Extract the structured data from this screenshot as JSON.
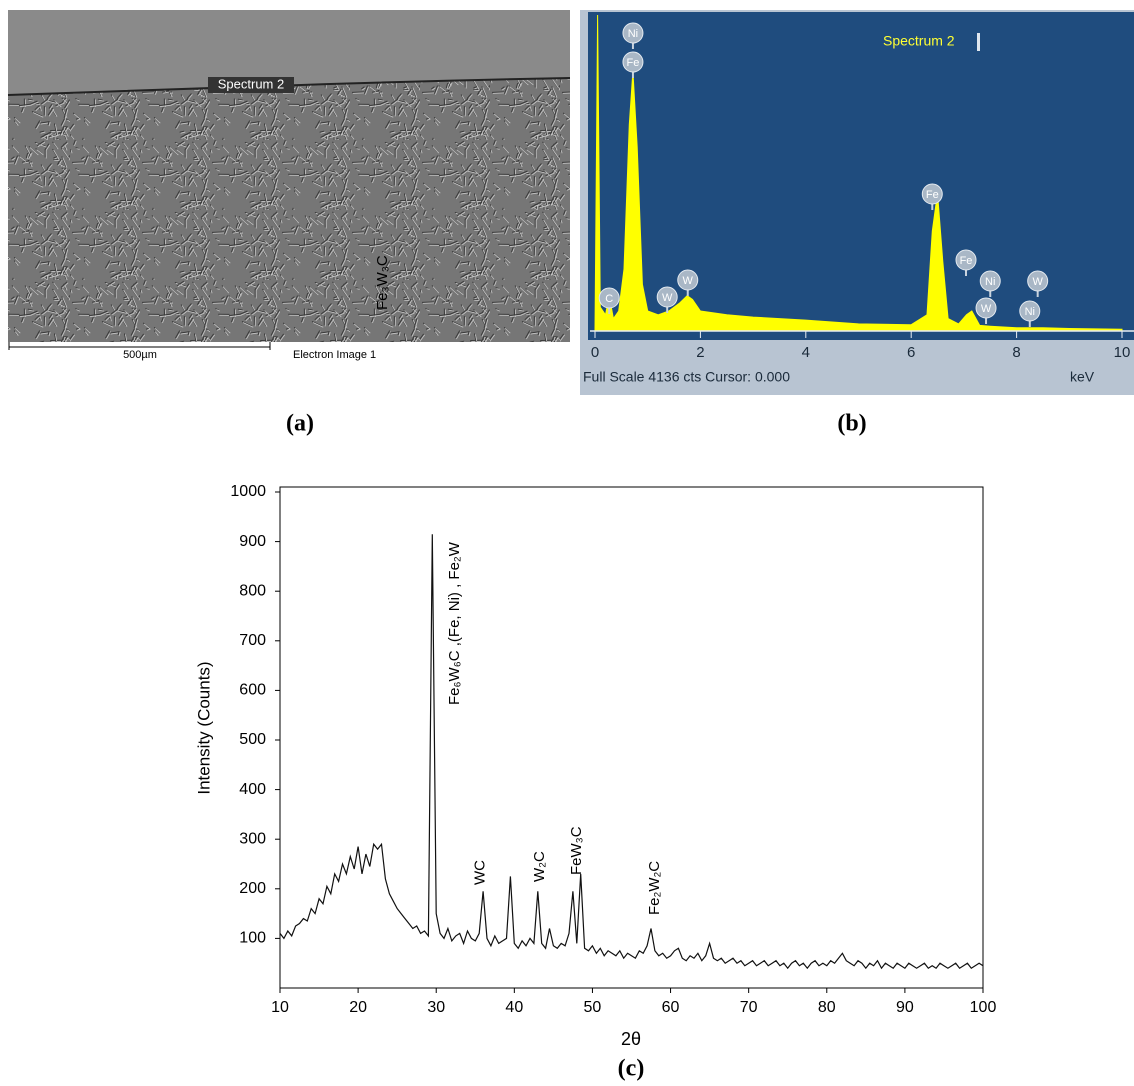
{
  "sem_image": {
    "marker_label": "Spectrum 2",
    "scale_bar_label": "500µm",
    "image_name": "Electron Image 1",
    "panel_label": "(a)"
  },
  "chart_data": [
    {
      "type": "area",
      "legend_label": "Spectrum 2",
      "color": "#ffff00",
      "x": [
        0,
        0.05,
        0.1,
        0.2,
        0.27,
        0.35,
        0.45,
        0.55,
        0.65,
        0.72,
        0.8,
        0.9,
        1,
        1.2,
        1.4,
        1.6,
        1.75,
        1.85,
        2,
        2.5,
        3,
        4,
        5,
        6,
        6.3,
        6.4,
        6.5,
        6.6,
        6.7,
        6.9,
        7.05,
        7.15,
        7.3,
        7.5,
        8,
        8.5,
        9,
        10
      ],
      "values": [
        0,
        4136,
        300,
        200,
        450,
        150,
        250,
        800,
        2700,
        3400,
        2400,
        600,
        250,
        200,
        250,
        350,
        450,
        400,
        250,
        200,
        170,
        130,
        80,
        70,
        200,
        1300,
        1800,
        900,
        150,
        80,
        200,
        250,
        60,
        50,
        30,
        30,
        20,
        10
      ],
      "xlim": [
        0,
        10
      ],
      "xticks": [
        0,
        2,
        4,
        6,
        8,
        10
      ],
      "ylim": [
        0,
        4136
      ],
      "xlabel": "keV",
      "footer": "Full Scale 4136 cts Cursor: 0.000",
      "annotations": [
        {
          "label": "Ni",
          "x": 0.72
        },
        {
          "label": "Fe",
          "x": 0.72
        },
        {
          "label": "C",
          "x": 0.27
        },
        {
          "label": "W",
          "x": 1.37
        },
        {
          "label": "W",
          "x": 1.76
        },
        {
          "label": "Fe",
          "x": 6.4
        },
        {
          "label": "Fe",
          "x": 7.04
        },
        {
          "label": "Ni",
          "x": 7.5
        },
        {
          "label": "W",
          "x": 7.42
        },
        {
          "label": "W",
          "x": 8.4
        },
        {
          "label": "Ni",
          "x": 8.25
        }
      ],
      "panel_label": "(b)"
    },
    {
      "type": "line",
      "color": "#111111",
      "x": [
        10,
        10.5,
        11,
        11.5,
        12,
        12.5,
        13,
        13.5,
        14,
        14.5,
        15,
        15.5,
        16,
        16.5,
        17,
        17.5,
        18,
        18.5,
        19,
        19.5,
        20,
        20.5,
        21,
        21.5,
        22,
        22.5,
        23,
        23.5,
        24,
        24.5,
        25,
        25.5,
        26,
        26.5,
        27,
        27.5,
        28,
        28.5,
        29,
        29.5,
        30,
        30.5,
        31,
        31.5,
        32,
        32.5,
        33,
        33.5,
        34,
        34.5,
        35,
        35.5,
        36,
        36.5,
        37,
        37.5,
        38,
        38.5,
        39,
        39.5,
        40,
        40.5,
        41,
        41.5,
        42,
        42.5,
        43,
        43.5,
        44,
        44.5,
        45,
        45.5,
        46,
        46.5,
        47,
        47.5,
        48,
        48.5,
        49,
        49.5,
        50,
        50.5,
        51,
        51.5,
        52,
        52.5,
        53,
        53.5,
        54,
        54.5,
        55,
        55.5,
        56,
        56.5,
        57,
        57.5,
        58,
        58.5,
        59,
        59.5,
        60,
        60.5,
        61,
        61.5,
        62,
        62.5,
        63,
        63.5,
        64,
        64.5,
        65,
        65.5,
        66,
        66.5,
        67,
        67.5,
        68,
        68.5,
        69,
        69.5,
        70,
        70.5,
        71,
        71.5,
        72,
        72.5,
        73,
        73.5,
        74,
        74.5,
        75,
        75.5,
        76,
        76.5,
        77,
        77.5,
        78,
        78.5,
        79,
        79.5,
        80,
        80.5,
        81,
        81.5,
        82,
        82.5,
        83,
        83.5,
        84,
        84.5,
        85,
        85.5,
        86,
        86.5,
        87,
        87.5,
        88,
        88.5,
        89,
        89.5,
        90,
        90.5,
        91,
        91.5,
        92,
        92.5,
        93,
        93.5,
        94,
        94.5,
        95,
        95.5,
        96,
        96.5,
        97,
        97.5,
        98,
        98.5,
        99,
        99.5,
        100
      ],
      "values": [
        110,
        100,
        115,
        105,
        125,
        130,
        140,
        135,
        160,
        150,
        180,
        170,
        205,
        190,
        230,
        215,
        250,
        230,
        265,
        240,
        285,
        230,
        270,
        245,
        290,
        280,
        290,
        220,
        190,
        175,
        160,
        150,
        140,
        130,
        120,
        125,
        110,
        115,
        105,
        915,
        150,
        110,
        100,
        120,
        95,
        105,
        110,
        90,
        115,
        100,
        95,
        110,
        195,
        100,
        85,
        105,
        90,
        95,
        100,
        225,
        90,
        80,
        95,
        85,
        100,
        90,
        195,
        90,
        80,
        120,
        85,
        80,
        90,
        85,
        110,
        195,
        90,
        230,
        80,
        75,
        85,
        70,
        80,
        65,
        75,
        70,
        65,
        75,
        60,
        70,
        65,
        60,
        75,
        70,
        85,
        120,
        75,
        65,
        70,
        60,
        65,
        75,
        80,
        60,
        55,
        65,
        60,
        70,
        55,
        65,
        90,
        60,
        55,
        60,
        50,
        55,
        60,
        50,
        55,
        45,
        50,
        55,
        45,
        50,
        55,
        45,
        50,
        55,
        45,
        50,
        40,
        50,
        55,
        45,
        50,
        40,
        50,
        55,
        45,
        50,
        45,
        55,
        50,
        60,
        70,
        55,
        50,
        45,
        55,
        50,
        40,
        50,
        45,
        55,
        40,
        50,
        45,
        40,
        50,
        45,
        40,
        50,
        45,
        40,
        45,
        50,
        40,
        45,
        40,
        50,
        45,
        40,
        45,
        50,
        40,
        45,
        50,
        40,
        45,
        50,
        45
      ],
      "xlim": [
        10,
        100
      ],
      "xticks": [
        10,
        20,
        30,
        40,
        50,
        60,
        70,
        80,
        90,
        100
      ],
      "ylim": [
        0,
        1000
      ],
      "yticks": [
        100,
        200,
        300,
        400,
        500,
        600,
        700,
        800,
        900,
        1000
      ],
      "xlabel": "2θ",
      "ylabel": "Intensity (Counts)",
      "annotations": [
        {
          "label": "Fe₃W₃C",
          "x": 23.2
        },
        {
          "label": "Fe₆W₆C ,(Fe, Ni) , Fe₂W",
          "x": 32.4
        },
        {
          "label": "WC",
          "x": 35.7
        },
        {
          "label": "W₂C",
          "x": 43.3
        },
        {
          "label": "FeW₃C",
          "x": 48
        },
        {
          "label": "Fe₂W₂C",
          "x": 58
        }
      ],
      "panel_label": "(c)"
    }
  ]
}
